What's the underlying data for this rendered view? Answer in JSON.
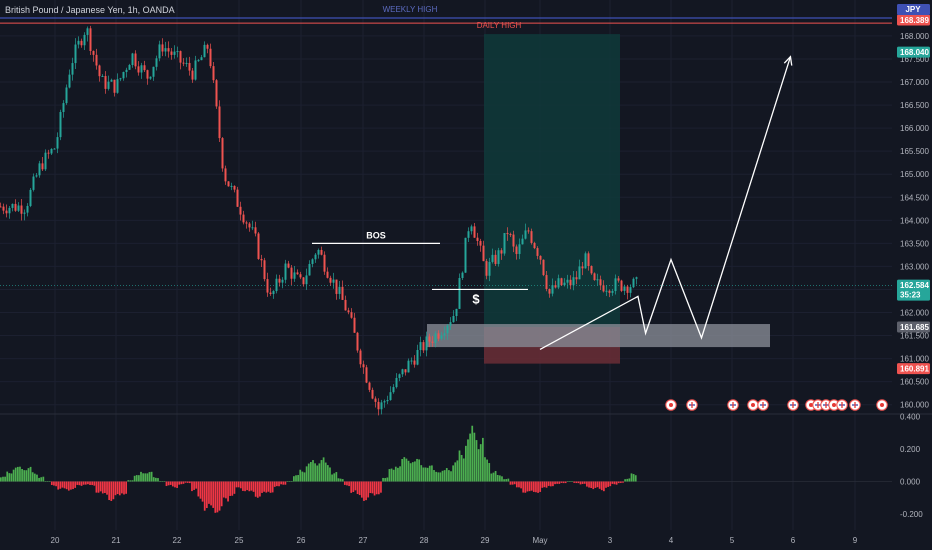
{
  "symbol": {
    "title": "British Pound / Japanese Yen, 1h, OANDA",
    "currency": "JPY"
  },
  "annotations": {
    "weekly_high": "WEEKLY HIGH",
    "daily_high": "DAILY HIGH",
    "bos": "BOS",
    "dollar": "$"
  },
  "price_badges": {
    "weekly_high": "168.389",
    "top": "168.040",
    "current": "162.584",
    "countdown": "35:23",
    "entry": "161.685",
    "stop": "160.891"
  },
  "colors": {
    "background": "#131722",
    "up": "#26a69a",
    "down": "#ef5350",
    "weekly_line": "#3f51b5",
    "daily_line": "#ef5350",
    "profit_zone": "#0f3a3a",
    "loss_zone": "#6b2e36",
    "demand_zone": "#868993"
  },
  "chart_data": [
    {
      "type": "candlestick",
      "title": "British Pound / Japanese Yen, 1h, OANDA",
      "x_ticks": [
        "20",
        "21",
        "22",
        "25",
        "26",
        "27",
        "28",
        "29",
        "May",
        "3",
        "4",
        "5",
        "6",
        "9"
      ],
      "y_ticks": [
        "160.000",
        "160.500",
        "161.000",
        "161.500",
        "162.000",
        "162.500",
        "163.000",
        "163.500",
        "164.000",
        "164.500",
        "165.000",
        "165.500",
        "166.000",
        "166.500",
        "167.000",
        "167.500",
        "168.000"
      ],
      "ylim": [
        159.8,
        168.6
      ],
      "levels": {
        "weekly_high": 168.389,
        "daily_high": 168.32,
        "bos": 163.5,
        "sweep": 162.5
      },
      "zones": {
        "long_target": [
          161.685,
          168.04
        ],
        "long_stop": [
          160.891,
          161.685
        ],
        "demand": [
          161.25,
          161.75
        ]
      },
      "path_points": [
        [
          "1 00:00",
          161.2
        ],
        [
          "3 11:00",
          162.35
        ],
        [
          "3 14:00",
          161.55
        ],
        [
          "4 00:00",
          163.15
        ],
        [
          "4 12:00",
          161.45
        ],
        [
          "5 23:00",
          167.55
        ]
      ],
      "events_count": 17,
      "close_path": [
        [
          "19 12:00",
          164.3
        ],
        [
          "19 18:00",
          165.2
        ],
        [
          "20 00:00",
          165.6
        ],
        [
          "20 06:00",
          167.4
        ],
        [
          "20 12:00",
          168.2
        ],
        [
          "20 18:00",
          167.0
        ],
        [
          "21 00:00",
          166.9
        ],
        [
          "21 06:00",
          167.6
        ],
        [
          "21 12:00",
          167.1
        ],
        [
          "21 18:00",
          167.8
        ],
        [
          "22 00:00",
          167.5
        ],
        [
          "22 06:00",
          167.2
        ],
        [
          "22 12:00",
          167.8
        ],
        [
          "22 18:00",
          165.0
        ],
        [
          "25 00:00",
          164.3
        ],
        [
          "25 06:00",
          163.6
        ],
        [
          "25 12:00",
          162.3
        ],
        [
          "25 18:00",
          163.0
        ],
        [
          "26 00:00",
          162.6
        ],
        [
          "26 06:00",
          163.4
        ],
        [
          "26 12:00",
          162.7
        ],
        [
          "26 18:00",
          162.0
        ],
        [
          "27 00:00",
          160.8
        ],
        [
          "27 06:00",
          159.9
        ],
        [
          "27 12:00",
          160.4
        ],
        [
          "27 18:00",
          160.9
        ],
        [
          "28 00:00",
          161.3
        ],
        [
          "28 06:00",
          161.6
        ],
        [
          "28 12:00",
          162.0
        ],
        [
          "28 18:00",
          164.1
        ],
        [
          "29 00:00",
          162.9
        ],
        [
          "29 06:00",
          163.1
        ],
        [
          "29 12:00",
          163.3
        ],
        [
          "29 18:00",
          163.8
        ],
        [
          "30 00:00",
          163.2
        ],
        [
          "30 06:00",
          163.5
        ],
        [
          "30 12:00",
          163.8
        ],
        [
          "30 18:00",
          163.5
        ],
        [
          "1 00:00",
          163.2
        ],
        [
          "1 06:00",
          162.4
        ],
        [
          "1 12:00",
          162.6
        ],
        [
          "1 18:00",
          162.6
        ],
        [
          "2 00:00",
          162.7
        ],
        [
          "2 06:00",
          163.2
        ],
        [
          "2 12:00",
          162.6
        ]
      ]
    },
    {
      "type": "bar",
      "title": "",
      "y_ticks": [
        "0.400",
        "0.200",
        "0.000",
        "-0.200"
      ],
      "ylim": [
        -0.28,
        0.42
      ],
      "values": [
        0.03,
        0.07,
        0.09,
        0.1,
        0.09,
        0.06,
        0.03,
        0.0,
        -0.03,
        -0.05,
        -0.06,
        -0.05,
        -0.03,
        -0.02,
        -0.03,
        -0.07,
        -0.1,
        -0.12,
        -0.11,
        -0.08,
        0.01,
        0.04,
        0.07,
        0.06,
        0.03,
        0.0,
        -0.03,
        -0.04,
        -0.02,
        -0.01,
        -0.06,
        -0.13,
        -0.18,
        -0.21,
        -0.19,
        -0.14,
        -0.09,
        -0.05,
        -0.06,
        -0.08,
        -0.1,
        -0.09,
        -0.07,
        -0.04,
        -0.02,
        0.0,
        0.04,
        0.08,
        0.12,
        0.14,
        0.15,
        0.12,
        0.06,
        0.02,
        -0.03,
        -0.07,
        -0.11,
        -0.12,
        -0.1,
        -0.08,
        0.03,
        0.08,
        0.12,
        0.15,
        0.16,
        0.14,
        0.12,
        0.1,
        0.08,
        0.07,
        0.09,
        0.13,
        0.2,
        0.3,
        0.35,
        0.28,
        0.15,
        0.07,
        0.04,
        0.02,
        -0.02,
        -0.05,
        -0.07,
        -0.08,
        -0.07,
        -0.05,
        -0.03,
        -0.02,
        -0.01,
        0.0,
        -0.01,
        -0.02,
        -0.04,
        -0.05,
        -0.06,
        -0.04,
        -0.02,
        -0.01,
        0.02,
        0.05
      ]
    }
  ]
}
